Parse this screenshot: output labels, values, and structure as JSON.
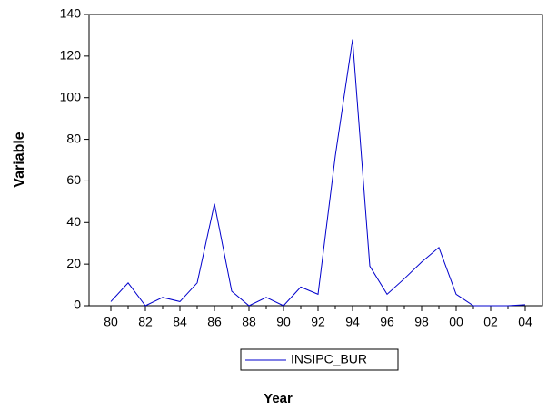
{
  "chart_data": {
    "type": "line",
    "x_label": "Year",
    "y_label": "Variable",
    "categories": [
      "80",
      null,
      "82",
      null,
      "84",
      null,
      "86",
      null,
      "88",
      null,
      "90",
      null,
      "92",
      null,
      "94",
      null,
      "96",
      null,
      "98",
      null,
      "00",
      null,
      "02",
      null,
      "04"
    ],
    "series": [
      {
        "name": "INSIPC_BUR",
        "color": "#0000cc",
        "values": [
          2,
          11,
          0,
          4,
          2,
          11,
          49,
          7,
          0,
          4,
          0,
          9,
          5.5,
          72,
          128,
          19,
          5.5,
          13,
          21,
          28,
          5.5,
          0,
          0,
          0,
          0.5
        ]
      }
    ],
    "ylim": [
      0,
      140
    ],
    "yticks": [
      0,
      20,
      40,
      60,
      80,
      100,
      120,
      140
    ],
    "grid": false,
    "legend": "bottom"
  }
}
